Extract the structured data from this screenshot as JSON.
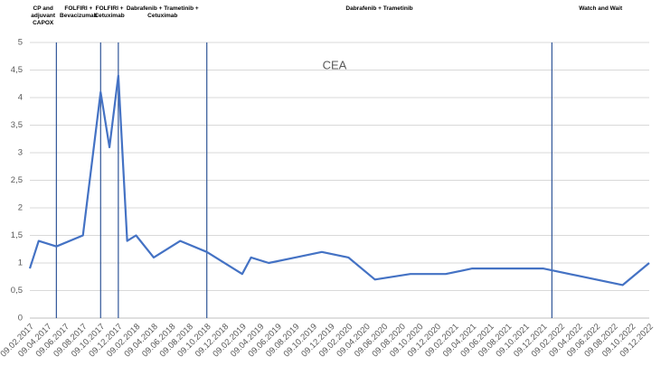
{
  "chart_data": {
    "type": "line",
    "title": "CEA",
    "color": "#4472c4",
    "x": [
      "09.02.2017",
      "09.03.2017",
      "09.05.2017",
      "09.08.2017",
      "09.10.2017",
      "09.11.2017",
      "09.12.2017",
      "09.01.2018",
      "09.02.2018",
      "09.04.2018",
      "09.07.2018",
      "09.10.2018",
      "09.02.2019",
      "09.03.2019",
      "09.05.2019",
      "09.08.2019",
      "09.11.2019",
      "09.02.2020",
      "09.05.2020",
      "09.09.2020",
      "09.01.2021",
      "09.04.2021",
      "09.12.2021",
      "09.09.2022",
      "09.12.2022"
    ],
    "values": [
      0.9,
      1.4,
      1.3,
      1.5,
      4.1,
      3.1,
      4.4,
      1.4,
      1.5,
      1.1,
      1.4,
      1.2,
      0.8,
      1.1,
      1.0,
      1.1,
      1.2,
      1.1,
      0.7,
      0.8,
      0.8,
      0.9,
      0.9,
      0.6,
      1.0
    ],
    "xlim": [
      "09.02.2017",
      "09.12.2022"
    ],
    "xticks": [
      "09.02.2017",
      "09.04.2017",
      "09.06.2017",
      "09.08.2017",
      "09.10.2017",
      "09.12.2017",
      "09.02.2018",
      "09.04.2018",
      "09.06.2018",
      "09.08.2018",
      "09.10.2018",
      "09.12.2018",
      "09.02.2019",
      "09.04.2019",
      "09.06.2019",
      "09.08.2019",
      "09.10.2019",
      "09.12.2019",
      "09.02.2020",
      "09.04.2020",
      "09.06.2020",
      "09.08.2020",
      "09.10.2020",
      "09.12.2020",
      "09.02.2021",
      "09.04.2021",
      "09.06.2021",
      "09.08.2021",
      "09.10.2021",
      "09.12.2021",
      "09.02.2022",
      "09.04.2022",
      "09.06.2022",
      "09.08.2022",
      "09.10.2022",
      "09.12.2022"
    ],
    "ylim": [
      0,
      5
    ],
    "yticks": [
      0,
      {
        "value": 0.5,
        "label": "0,5"
      },
      1,
      {
        "value": 1.5,
        "label": "1,5"
      },
      2,
      {
        "value": 2.5,
        "label": "2,5"
      },
      3,
      {
        "value": 3.5,
        "label": "3,5"
      },
      4,
      {
        "value": 4.5,
        "label": "4,5"
      },
      5
    ],
    "grid": true,
    "phase_boundaries": [
      "09.05.2017",
      "09.10.2017",
      "09.12.2017",
      "09.10.2018",
      "09.01.2022"
    ],
    "phase_labels": [
      "CP and adjuvant CAPOX",
      "FOLFIRI + Bevacizumab",
      "FOLFIRI + Cetuximab",
      "Dabrafenib + Trametinib + Cetuximab",
      "Dabrafenib + Trametinib",
      "Watch and Wait"
    ]
  }
}
